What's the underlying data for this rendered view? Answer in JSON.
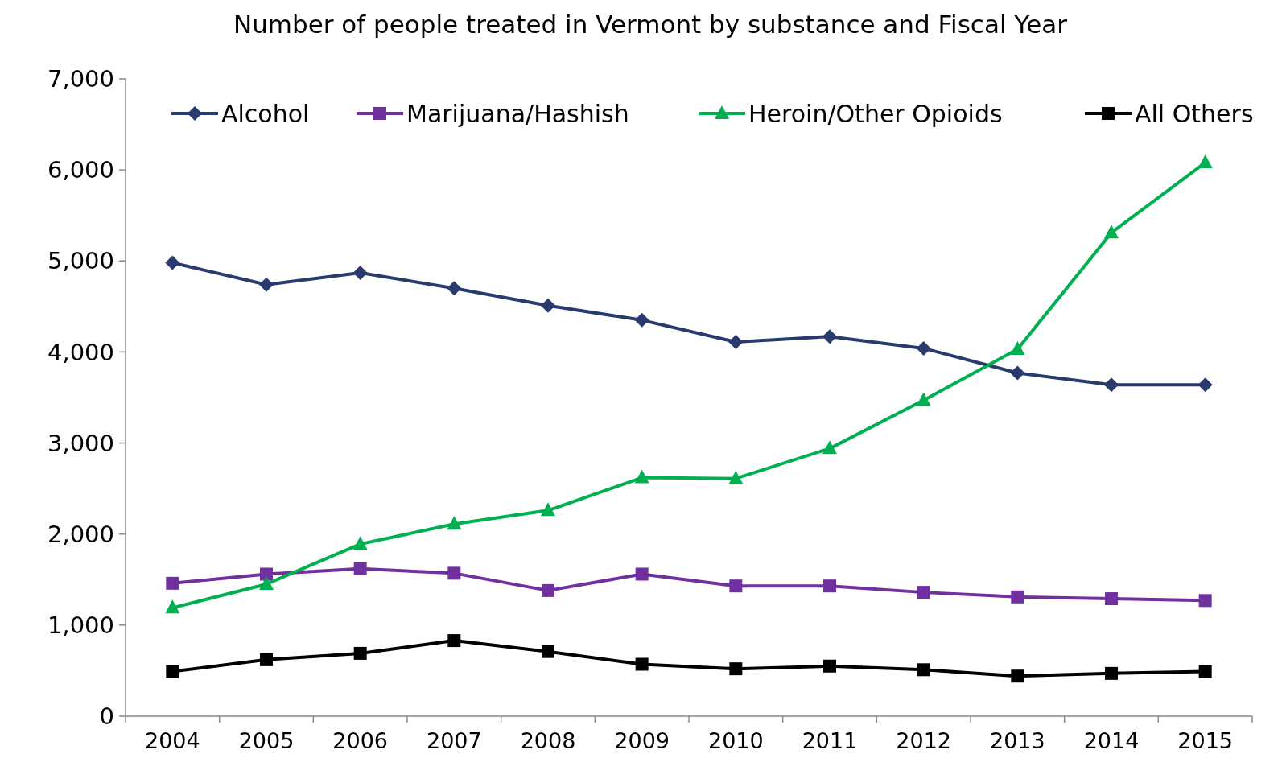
{
  "chart_data": {
    "type": "line",
    "title": "Number of people treated in Vermont by substance and Fiscal Year",
    "categories": [
      "2004",
      "2005",
      "2006",
      "2007",
      "2008",
      "2009",
      "2010",
      "2011",
      "2012",
      "2013",
      "2014",
      "2015"
    ],
    "series": [
      {
        "name": "Alcohol",
        "color": "#283a6e",
        "marker": "diamond",
        "values": [
          4980,
          4740,
          4870,
          4700,
          4510,
          4350,
          4110,
          4170,
          4040,
          3770,
          3640,
          3640
        ]
      },
      {
        "name": "Marijuana/Hashish",
        "color": "#7030a0",
        "marker": "square",
        "values": [
          1460,
          1560,
          1620,
          1570,
          1380,
          1560,
          1430,
          1430,
          1360,
          1310,
          1290,
          1270
        ]
      },
      {
        "name": "Heroin/Other Opioids",
        "color": "#00b050",
        "marker": "triangle",
        "values": [
          1190,
          1450,
          1890,
          2110,
          2260,
          2620,
          2610,
          2940,
          3470,
          4030,
          5310,
          6080
        ]
      },
      {
        "name": "All Others",
        "color": "#000000",
        "marker": "square",
        "values": [
          490,
          620,
          690,
          830,
          710,
          570,
          520,
          550,
          510,
          440,
          470,
          490
        ]
      }
    ],
    "ylim": [
      0,
      7000
    ],
    "yticks": [
      {
        "value": 0,
        "label": "0"
      },
      {
        "value": 1000,
        "label": "1,000"
      },
      {
        "value": 2000,
        "label": "2,000"
      },
      {
        "value": 3000,
        "label": "3,000"
      },
      {
        "value": 4000,
        "label": "4,000"
      },
      {
        "value": 5000,
        "label": "5,000"
      },
      {
        "value": 6000,
        "label": "6,000"
      },
      {
        "value": 7000,
        "label": "7,000"
      }
    ],
    "grid": false,
    "legend": "top",
    "line_style": "solid"
  }
}
